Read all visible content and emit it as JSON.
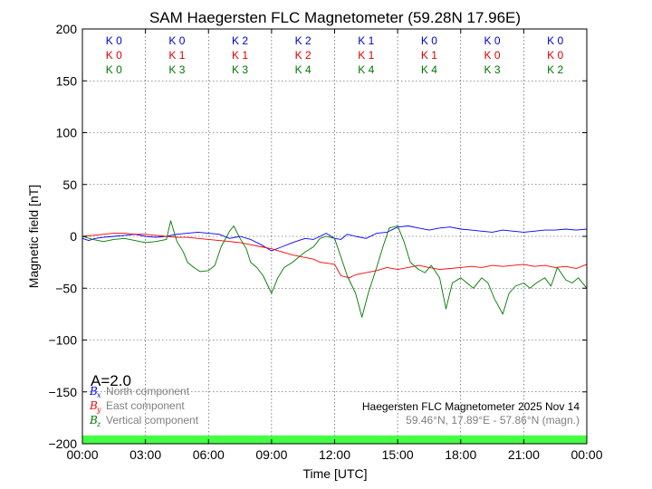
{
  "chart_data": {
    "type": "line",
    "title": "SAM Haegersten FLC Magnetometer (59.28N 17.96E)",
    "xlabel": "Time [UTC]",
    "ylabel": "Magnetic field [nT]",
    "xlim": [
      0,
      24
    ],
    "ylim": [
      -200,
      200
    ],
    "x_tick_labels": [
      "00:00",
      "03:00",
      "06:00",
      "09:00",
      "12:00",
      "15:00",
      "18:00",
      "21:00",
      "00:00"
    ],
    "y_ticks": [
      200,
      150,
      100,
      50,
      0,
      -50,
      -100,
      -150,
      -200
    ],
    "y_tick_labels": [
      "200",
      "150",
      "100",
      "50",
      "0",
      "−50",
      "−100",
      "−150",
      "−200"
    ],
    "grid": true,
    "k_indices": [
      {
        "name": "North",
        "color": "#0000cc",
        "values": [
          "K 0",
          "K 0",
          "K 2",
          "K 2",
          "K 1",
          "K 0",
          "K 0",
          "K 0"
        ]
      },
      {
        "name": "East",
        "color": "#dd0000",
        "values": [
          "K 0",
          "K 1",
          "K 1",
          "K 2",
          "K 1",
          "K 1",
          "K 0",
          "K 0"
        ]
      },
      {
        "name": "Vertical",
        "color": "#007700",
        "values": [
          "K 0",
          "K 3",
          "K 3",
          "K 4",
          "K 4",
          "K 4",
          "K 3",
          "K 2"
        ]
      }
    ],
    "a_index": "A=2.0",
    "legend": [
      {
        "symbol": "B",
        "sub": "x",
        "label": "North component",
        "color": "#0000ff"
      },
      {
        "symbol": "B",
        "sub": "y",
        "label": "East component",
        "color": "#ff0000"
      },
      {
        "symbol": "B",
        "sub": "z",
        "label": "Vertical component",
        "color": "#007700"
      }
    ],
    "info_line1": "Haegersten FLC Magnetometer 2025 Nov 14",
    "info_line2": "59.46°N, 17.89°E - 57.86°N (magn.)",
    "activity_bar_color": "#44ff44",
    "series": [
      {
        "name": "North component",
        "color": "#0000ff",
        "x": [
          0,
          0.3,
          0.6,
          1,
          1.5,
          2,
          2.5,
          3,
          3.5,
          4,
          4.5,
          5,
          5.5,
          6,
          6.5,
          7,
          7.5,
          8,
          8.5,
          9,
          9.5,
          10,
          10.3,
          10.6,
          11,
          11.3,
          11.6,
          12,
          12.3,
          12.6,
          13,
          13.5,
          14,
          14.5,
          15,
          15.5,
          16,
          16.5,
          17,
          17.5,
          18,
          18.5,
          19,
          19.5,
          20,
          20.5,
          21,
          21.5,
          22,
          22.5,
          23,
          23.5,
          24
        ],
        "y": [
          -2,
          -4,
          -2,
          -1,
          0,
          1,
          2,
          0,
          -1,
          0,
          2,
          3,
          4,
          3,
          2,
          -2,
          0,
          -3,
          -8,
          -14,
          -10,
          -6,
          -4,
          -2,
          -3,
          0,
          3,
          -2,
          -3,
          2,
          0,
          -2,
          3,
          4,
          9,
          10,
          8,
          6,
          8,
          9,
          7,
          6,
          5,
          4,
          6,
          5,
          4,
          5,
          6,
          6,
          7,
          6,
          7
        ]
      },
      {
        "name": "East component",
        "color": "#ff0000",
        "x": [
          0,
          0.5,
          1,
          1.5,
          2,
          2.5,
          3,
          3.5,
          4,
          4.5,
          5,
          5.5,
          6,
          6.5,
          7,
          7.5,
          8,
          8.5,
          9,
          9.5,
          10,
          10.5,
          11,
          11.3,
          11.7,
          12,
          12.3,
          12.7,
          13,
          13.5,
          14,
          14.5,
          15,
          15.5,
          16,
          16.5,
          17,
          17.5,
          18,
          18.5,
          19,
          19.5,
          20,
          20.5,
          21,
          21.5,
          22,
          22.5,
          23,
          23.5,
          24
        ],
        "y": [
          0,
          1,
          2,
          3,
          3,
          2,
          2,
          1,
          0,
          -1,
          -1,
          -2,
          -3,
          -4,
          -5,
          -6,
          -8,
          -10,
          -12,
          -15,
          -18,
          -20,
          -22,
          -25,
          -26,
          -27,
          -38,
          -40,
          -37,
          -35,
          -33,
          -30,
          -32,
          -30,
          -28,
          -30,
          -32,
          -31,
          -30,
          -29,
          -30,
          -28,
          -29,
          -28,
          -27,
          -29,
          -28,
          -30,
          -29,
          -31,
          -27
        ]
      },
      {
        "name": "Vertical component",
        "color": "#007700",
        "x": [
          0,
          0.5,
          1,
          1.5,
          2,
          2.5,
          3,
          3.5,
          4,
          4.2,
          4.5,
          4.8,
          5,
          5.3,
          5.6,
          6,
          6.3,
          6.6,
          7,
          7.2,
          7.5,
          7.8,
          8,
          8.3,
          8.6,
          9,
          9.3,
          9.6,
          10,
          10.3,
          10.6,
          11,
          11.3,
          11.6,
          12,
          12.3,
          12.6,
          13,
          13.3,
          13.6,
          14,
          14.3,
          14.6,
          15,
          15.3,
          15.6,
          16,
          16.3,
          16.6,
          17,
          17.3,
          17.6,
          18,
          18.3,
          18.6,
          19,
          19.3,
          19.6,
          20,
          20.3,
          20.6,
          21,
          21.3,
          21.6,
          22,
          22.3,
          22.6,
          23,
          23.3,
          23.6,
          24
        ],
        "y": [
          0,
          -3,
          -5,
          -3,
          -2,
          -4,
          -6,
          -5,
          -3,
          15,
          -5,
          -15,
          -25,
          -30,
          -34,
          -33,
          -28,
          -10,
          5,
          10,
          -2,
          -12,
          -25,
          -30,
          -38,
          -55,
          -40,
          -30,
          -25,
          -20,
          -15,
          -10,
          -2,
          0,
          -2,
          -20,
          -38,
          -55,
          -78,
          -55,
          -30,
          -10,
          8,
          10,
          -5,
          -25,
          -32,
          -35,
          -28,
          -40,
          -70,
          -45,
          -40,
          -45,
          -50,
          -40,
          -45,
          -60,
          -75,
          -55,
          -48,
          -45,
          -50,
          -45,
          -40,
          -48,
          -30,
          -42,
          -45,
          -40,
          -50
        ]
      }
    ]
  }
}
